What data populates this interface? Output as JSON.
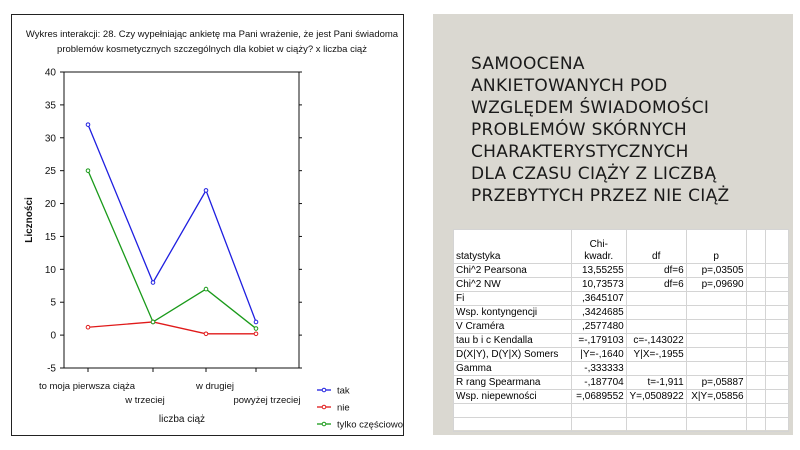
{
  "chart_data": {
    "type": "line",
    "title_lines": [
      "Wykres interakcji: 28. Czy wypełniając ankietę ma Pani wrażenie, że jest Pani świadoma",
      "problemów kosmetycznych szczególnych dla kobiet w ciąży? x liczba ciąż"
    ],
    "xlabel": "liczba ciąż",
    "ylabel": "Liczności",
    "ylim": [
      -5,
      40
    ],
    "yticks": [
      -5,
      0,
      5,
      10,
      15,
      20,
      25,
      30,
      35,
      40
    ],
    "categories": [
      "to moja pierwsza ciąża",
      "w trzeciej",
      "w drugiej",
      "powyżej trzeciej"
    ],
    "grid": false,
    "legend_position": "bottom-right",
    "series": [
      {
        "name": "tak",
        "color": "#1f1fe0",
        "values": [
          32,
          8,
          22,
          2
        ]
      },
      {
        "name": "nie",
        "color": "#e01a1a",
        "values": [
          1.2,
          2,
          0.2,
          0.2
        ]
      },
      {
        "name": "tylko częściowo",
        "color": "#1a9a1a",
        "values": [
          25,
          2,
          7,
          1
        ]
      }
    ]
  },
  "slide": {
    "title_lines": [
      "SAMOOCENA",
      "ANKIETOWANYCH POD",
      "WZGLĘDEM ŚWIADOMOŚCI",
      "PROBLEMÓW SKÓRNYCH",
      "CHARAKTERYSTYCZNYCH",
      "DLA CZASU CIĄŻY Z LICZBĄ",
      "PRZEBYTYCH PRZEZ NIE CIĄŻ"
    ]
  },
  "stats_table": {
    "headers": [
      "statystyka",
      "Chi-\nkwadr.",
      "df",
      "p"
    ],
    "rows": [
      [
        "Chi^2 Pearsona",
        "13,55255",
        "df=6",
        "p=,03505"
      ],
      [
        "Chi^2 NW",
        "10,73573",
        "df=6",
        "p=,09690"
      ],
      [
        "Fi",
        ",3645107",
        "",
        ""
      ],
      [
        "Wsp. kontyngencji",
        ",3424685",
        "",
        ""
      ],
      [
        "V Craméra",
        ",2577480",
        "",
        ""
      ],
      [
        "tau b i c Kendalla",
        "=-,179103",
        "c=-,143022",
        ""
      ],
      [
        "D(X|Y), D(Y|X) Somers",
        "|Y=-,1640",
        "Y|X=-,1955",
        ""
      ],
      [
        "Gamma",
        "-,333333",
        "",
        ""
      ],
      [
        "R rang Spearmana",
        "-,187704",
        "t=-1,911",
        "p=,05887"
      ],
      [
        "Wsp. niepewności",
        "=,0689552",
        "Y=,0508922",
        "X|Y=,05856"
      ]
    ]
  }
}
